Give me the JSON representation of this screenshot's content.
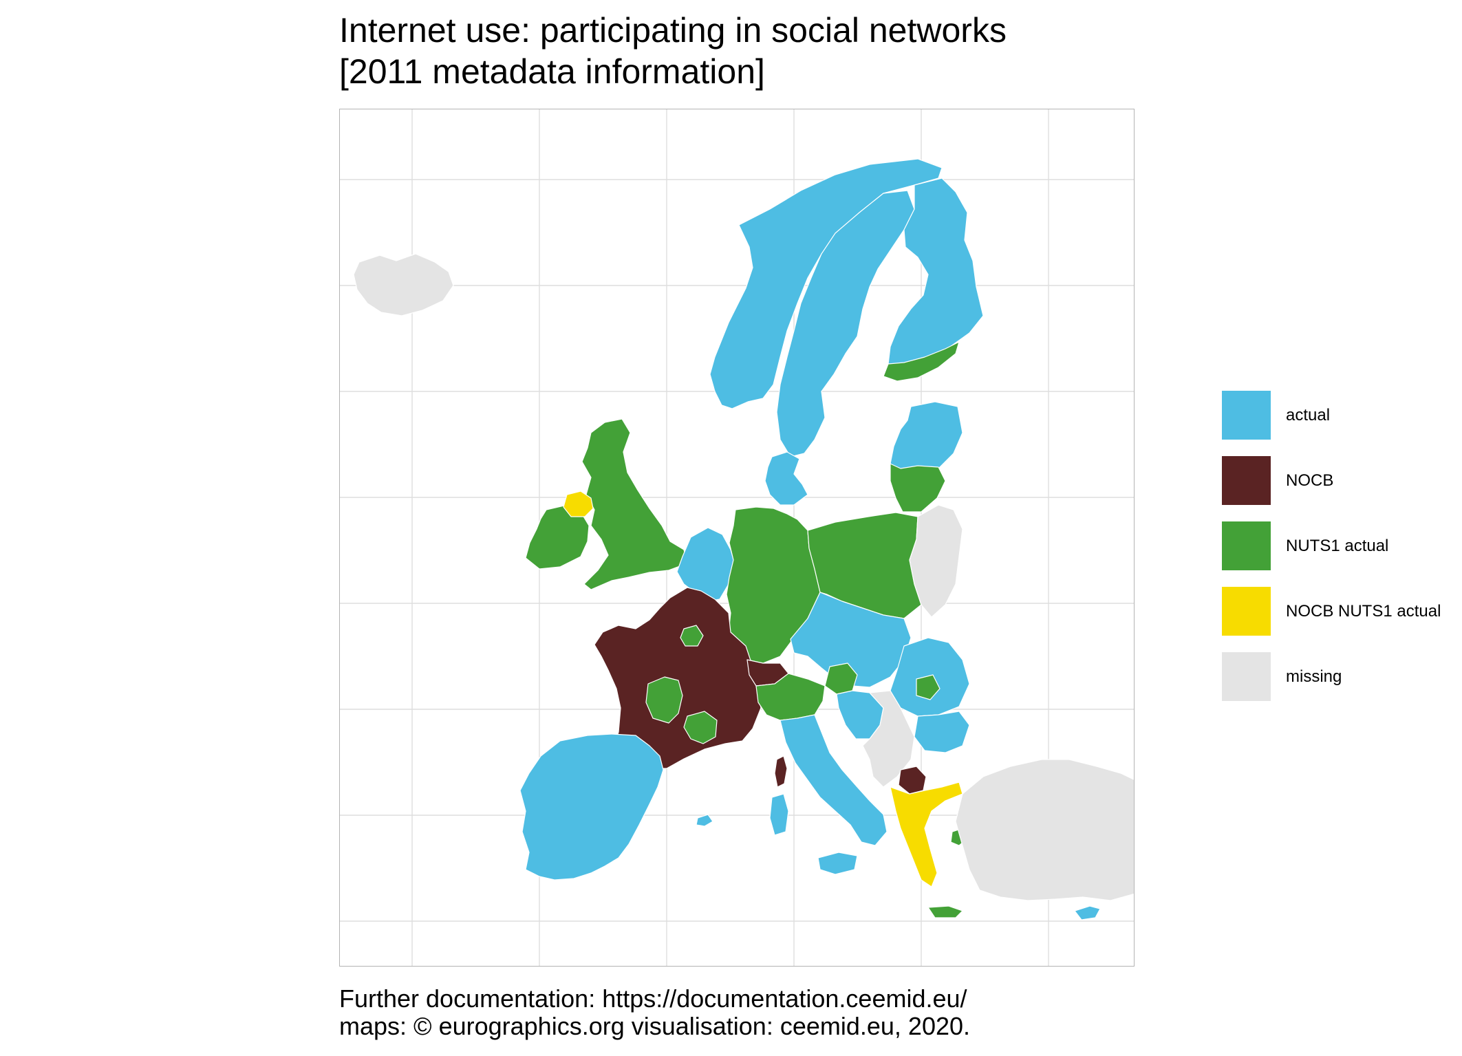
{
  "map": {
    "title_line1": "Internet use: participating in social networks",
    "title_line2": "[2011 metadata information]",
    "caption_line1": "Further documentation: https://documentation.ceemid.eu/",
    "caption_line2": "maps: © eurographics.org  visualisation: ceemid.eu, 2020.",
    "legend": [
      {
        "label": "actual",
        "color": "#4EBDE3"
      },
      {
        "label": "NOCB",
        "color": "#5A2323"
      },
      {
        "label": "NUTS1 actual",
        "color": "#43A137"
      },
      {
        "label": "NOCB NUTS1 actual",
        "color": "#F7DC00"
      },
      {
        "label": "missing",
        "color": "#E4E4E4"
      }
    ],
    "region_categories": {
      "iceland": "missing",
      "norway": "actual",
      "sweden": "actual",
      "finland": "actual",
      "finland_south": "NUTS1 actual",
      "estonia_latvia": "actual",
      "lithuania": "NUTS1 actual",
      "denmark": "actual",
      "great_britain": "NUTS1 actual",
      "ireland": "NUTS1 actual",
      "northern_ireland": "NOCB NUTS1 actual",
      "benelux": "actual",
      "germany": "NUTS1 actual",
      "poland": "NUTS1 actual",
      "belarus_ukraine": "missing",
      "france": "NOCB",
      "france_centre_islands": "NUTS1 actual",
      "corsica": "NOCB",
      "switzerland": "NOCB",
      "czechia_slovakia_hungary": "actual",
      "austria": "actual",
      "romania": "actual",
      "romania_bucuresti": "NUTS1 actual",
      "bulgaria": "actual",
      "italy": "actual",
      "italy_north": "NUTS1 actual",
      "sardinia": "actual",
      "sicily": "actual",
      "slovenia": "NUTS1 actual",
      "croatia": "actual",
      "west_balkans": "missing",
      "north_macedonia": "NOCB",
      "greece": "NOCB NUTS1 actual",
      "greek_islands": "NUTS1 actual",
      "crete": "NUTS1 actual",
      "turkey": "missing",
      "cyprus": "actual",
      "iberia": "actual",
      "balearics": "actual"
    }
  }
}
